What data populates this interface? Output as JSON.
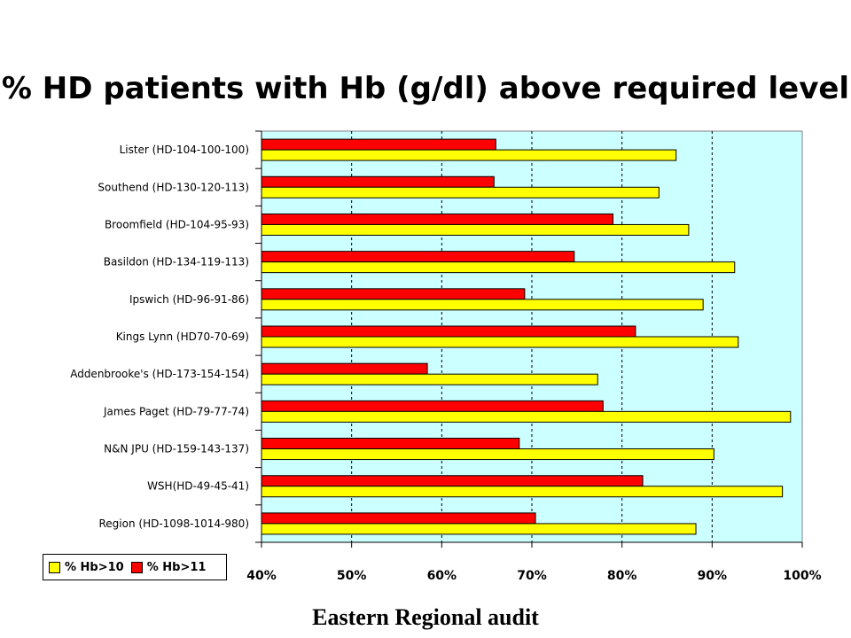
{
  "title": "% HD patients with Hb (g/dl) above required level",
  "footer": "Eastern Regional audit",
  "colors": {
    "hb10": "#ffff00",
    "hb11": "#ff0000",
    "plot_bg": "#ccffff",
    "outline": "#000000"
  },
  "legend": [
    {
      "label": "% Hb>10",
      "color": "#ffff00"
    },
    {
      "label": "% Hb>11",
      "color": "#ff0000"
    }
  ],
  "chart_data": {
    "type": "bar",
    "orientation": "horizontal",
    "title": "% HD patients with Hb (g/dl) above required level",
    "xlabel": "",
    "ylabel": "",
    "xlim": [
      40,
      100
    ],
    "x_ticks": [
      "40%",
      "50%",
      "60%",
      "70%",
      "80%",
      "90%",
      "100%"
    ],
    "grid": "vertical dashed",
    "legend_position": "bottom-left",
    "categories": [
      "Lister (HD-104-100-100)",
      "Southend (HD-130-120-113)",
      "Broomfield (HD-104-95-93)",
      "Basildon (HD-134-119-113)",
      "Ipswich (HD-96-91-86)",
      "Kings Lynn (HD70-70-69)",
      "Addenbrooke's (HD-173-154-154)",
      "James Paget (HD-79-77-74)",
      "N&N JPU (HD-159-143-137)",
      "WSH(HD-49-45-41)",
      "Region (HD-1098-1014-980)"
    ],
    "series": [
      {
        "name": "% Hb>10",
        "color": "#ffff00",
        "values": [
          86.0,
          84.1,
          87.4,
          92.5,
          89.0,
          92.9,
          77.3,
          98.7,
          90.2,
          97.8,
          88.2
        ]
      },
      {
        "name": "% Hb>11",
        "color": "#ff0000",
        "values": [
          66.0,
          65.8,
          79.0,
          74.7,
          69.2,
          81.5,
          58.4,
          77.9,
          68.6,
          82.3,
          70.4
        ]
      }
    ]
  }
}
